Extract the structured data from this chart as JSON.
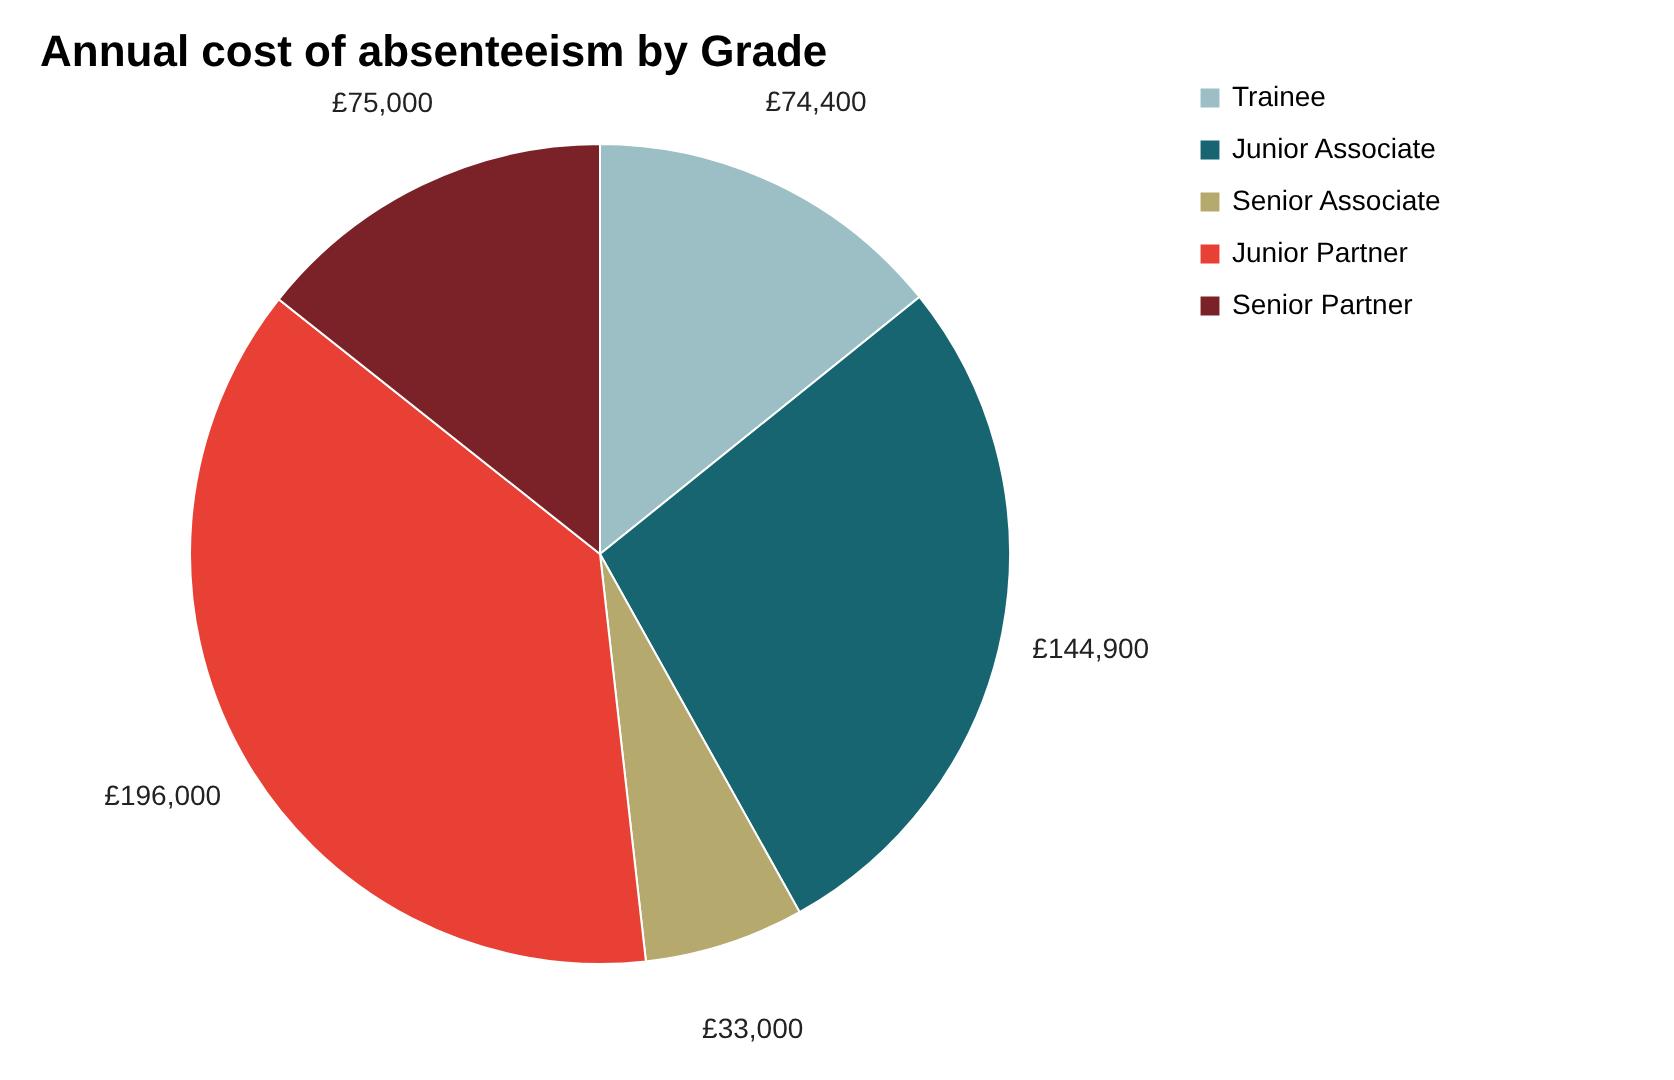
{
  "chart_data": {
    "type": "pie",
    "title": "Annual cost of absenteeism by Grade",
    "categories": [
      "Trainee",
      "Junior Associate",
      "Senior Associate",
      "Junior Partner",
      "Senior Partner"
    ],
    "values": [
      74400,
      144900,
      33000,
      196000,
      75000
    ],
    "colors": [
      "#9bbfc4",
      "#166570",
      "#b5a96e",
      "#e84034",
      "#7b2228"
    ],
    "value_labels": [
      "£74,400",
      "£144,900",
      "£33,000",
      "£196,000",
      "£75,000"
    ],
    "legend": "top right"
  }
}
